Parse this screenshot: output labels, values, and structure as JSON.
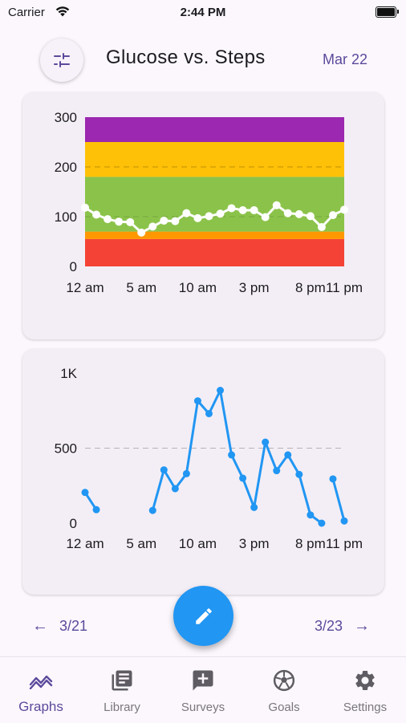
{
  "status_bar": {
    "carrier": "Carrier",
    "time": "2:44 PM"
  },
  "header": {
    "title": "Glucose vs. Steps",
    "date": "Mar 22"
  },
  "glucose_chart": {
    "type": "line",
    "y_ticks": [
      "300",
      "200",
      "100",
      "0"
    ],
    "ylim": [
      0,
      300
    ],
    "x_ticks": [
      "12 am",
      "5 am",
      "10 am",
      "3 pm",
      "8 pm",
      "11 pm"
    ],
    "x_tick_hours": [
      0,
      5,
      10,
      15,
      20,
      23
    ],
    "xlim": [
      0,
      23
    ],
    "reference_line": 200,
    "bands": [
      {
        "from": 0,
        "to": 55,
        "color": "#f44336"
      },
      {
        "from": 55,
        "to": 70,
        "color": "#ff9800"
      },
      {
        "from": 70,
        "to": 180,
        "color": "#8bc34a"
      },
      {
        "from": 180,
        "to": 250,
        "color": "#ffc107"
      },
      {
        "from": 250,
        "to": 300,
        "color": "#9c27b0"
      }
    ],
    "line_color": "#ffffff",
    "x": [
      0,
      1,
      2,
      3,
      4,
      5,
      6,
      7,
      8,
      9,
      10,
      11,
      12,
      13,
      14,
      15,
      16,
      17,
      18,
      19,
      20,
      21,
      22,
      23
    ],
    "values": [
      118,
      104,
      95,
      90,
      89,
      68,
      80,
      92,
      91,
      107,
      97,
      101,
      106,
      117,
      113,
      113,
      99,
      123,
      107,
      105,
      101,
      79,
      103,
      114
    ]
  },
  "steps_chart": {
    "type": "line",
    "y_ticks": [
      "1K",
      "500",
      "0"
    ],
    "ylim": [
      0,
      1000
    ],
    "x_ticks": [
      "12 am",
      "5 am",
      "10 am",
      "3 pm",
      "8 pm",
      "11 pm"
    ],
    "x_tick_hours": [
      0,
      5,
      10,
      15,
      20,
      23
    ],
    "xlim": [
      0,
      23
    ],
    "reference_line": 500,
    "line_color": "#2196f3",
    "series": [
      {
        "x": [
          0,
          1
        ],
        "values": [
          205,
          90
        ]
      },
      {
        "x": [
          6,
          7,
          8,
          9,
          10,
          11,
          12,
          13,
          14,
          15,
          16,
          17,
          18,
          19,
          20,
          21
        ],
        "values": [
          85,
          355,
          230,
          330,
          815,
          730,
          885,
          455,
          300,
          105,
          540,
          350,
          455,
          325,
          55,
          0
        ]
      },
      {
        "x": [
          22,
          23
        ],
        "values": [
          295,
          15
        ]
      }
    ]
  },
  "nav": {
    "prev": "3/21",
    "next": "3/23"
  },
  "bottom_nav": [
    {
      "label": "Graphs",
      "icon": "graphs-icon",
      "active": true
    },
    {
      "label": "Library",
      "icon": "library-icon",
      "active": false
    },
    {
      "label": "Surveys",
      "icon": "surveys-icon",
      "active": false
    },
    {
      "label": "Goals",
      "icon": "goals-icon",
      "active": false
    },
    {
      "label": "Settings",
      "icon": "settings-icon",
      "active": false
    }
  ],
  "colors": {
    "accent": "#5b4a9b",
    "fab": "#2196f3"
  }
}
